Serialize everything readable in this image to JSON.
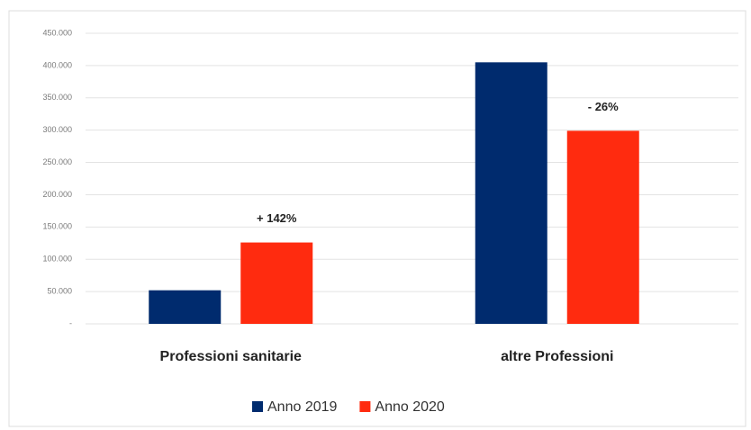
{
  "chart_data": {
    "type": "bar",
    "categories": [
      "Professioni sanitarie",
      "altre Professioni"
    ],
    "series": [
      {
        "name": "Anno 2019",
        "color": "#002b6e",
        "values": [
          52000,
          405000
        ]
      },
      {
        "name": "Anno 2020",
        "color": "#ff2b0f",
        "values": [
          126000,
          299000
        ]
      }
    ],
    "annotations": [
      "+ 142%",
      "- 26%"
    ],
    "ylim": [
      0,
      450000
    ],
    "yticks": [
      {
        "value": 0,
        "label": "-"
      },
      {
        "value": 50000,
        "label": "50.000"
      },
      {
        "value": 100000,
        "label": "100.000"
      },
      {
        "value": 150000,
        "label": "150.000"
      },
      {
        "value": 200000,
        "label": "200.000"
      },
      {
        "value": 250000,
        "label": "250.000"
      },
      {
        "value": 300000,
        "label": "300.000"
      },
      {
        "value": 350000,
        "label": "350.000"
      },
      {
        "value": 400000,
        "label": "400.000"
      },
      {
        "value": 450000,
        "label": "450.000"
      }
    ],
    "grid": true,
    "legend": "bottom"
  }
}
